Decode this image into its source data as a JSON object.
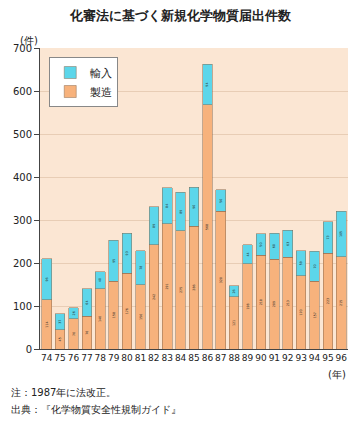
{
  "chart_data": {
    "type": "bar",
    "title": "化審法に基づく新規化学物質届出件数",
    "y_label": "(件)",
    "x_label": "(年)",
    "categories": [
      "74",
      "75",
      "76",
      "77",
      "78",
      "79",
      "80",
      "81",
      "82",
      "83",
      "84",
      "85",
      "86",
      "87",
      "88",
      "89",
      "90",
      "91",
      "92",
      "93",
      "94",
      "95",
      "96"
    ],
    "series": [
      {
        "name": "製造",
        "color": "#f7b27c",
        "values": [
          114,
          45,
          70,
          76,
          140,
          158,
          176,
          150,
          242,
          291,
          275,
          286,
          568,
          320,
          121,
          198,
          218,
          209,
          213,
          170,
          157,
          223,
          215
        ]
      },
      {
        "name": "輸入",
        "color": "#5cd6ea",
        "values": [
          96,
          37,
          26,
          64,
          40,
          95,
          93,
          78,
          89,
          84,
          89,
          90,
          94,
          50,
          26,
          44,
          50,
          60,
          63,
          59,
          70,
          73,
          105
        ]
      }
    ],
    "stacked": true,
    "data_labels": true,
    "ylim": [
      0,
      700
    ],
    "yticks": [
      0,
      100,
      200,
      300,
      400,
      500,
      600,
      700
    ],
    "grid": true,
    "legend": "upper left",
    "notes": [
      "注：1987年に法改正。",
      "出典：『化学物質安全性規制ガイド』"
    ]
  }
}
